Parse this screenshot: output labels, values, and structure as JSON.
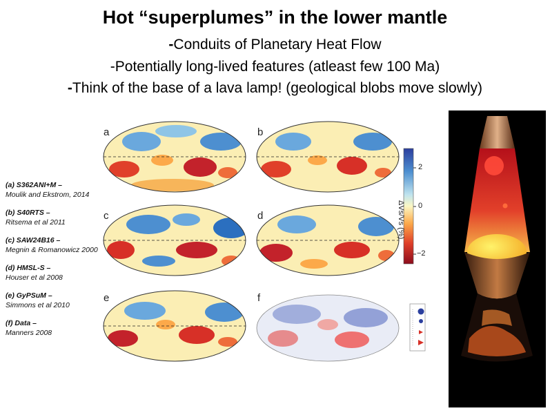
{
  "slide": {
    "title": "Hot “superplumes” in the lower mantle",
    "bullets": [
      {
        "dash": "-",
        "text": "Conduits of Planetary Heat Flow"
      },
      {
        "dash": "-",
        "text": "Potentially long-lived features (atleast few 100 Ma)"
      },
      {
        "dash": "-",
        "text": "Think of the base of a lava lamp! (geological blobs move slowly)"
      }
    ]
  },
  "figure": {
    "panels": [
      "a",
      "b",
      "c",
      "d",
      "e",
      "f"
    ],
    "colorbar": {
      "label": "ΔVs/Vs (%)",
      "ticks": [
        "2",
        "0",
        "−2"
      ],
      "colors": {
        "high": "#2b3f9e",
        "mid": "#fbf7c4",
        "low": "#b2182b"
      }
    },
    "references": [
      {
        "name": "(a) S362ANI+M –",
        "authors": "Moulik and Ekstrom, 2014"
      },
      {
        "name": "(b) S40RTS –",
        "authors": "Ritsema et al 2011"
      },
      {
        "name": "(c) SAW24B16 –",
        "authors": "Megnin & Romanowicz 2000"
      },
      {
        "name": "(d) HMSL-S –",
        "authors": "Houser et al 2008"
      },
      {
        "name": "(e) GyPSuM –",
        "authors": "Simmons et al 2010"
      },
      {
        "name": "(f) Data –",
        "authors": "Manners 2008"
      }
    ]
  },
  "lamp_image": {
    "icon": "lava-lamp-illustration"
  }
}
